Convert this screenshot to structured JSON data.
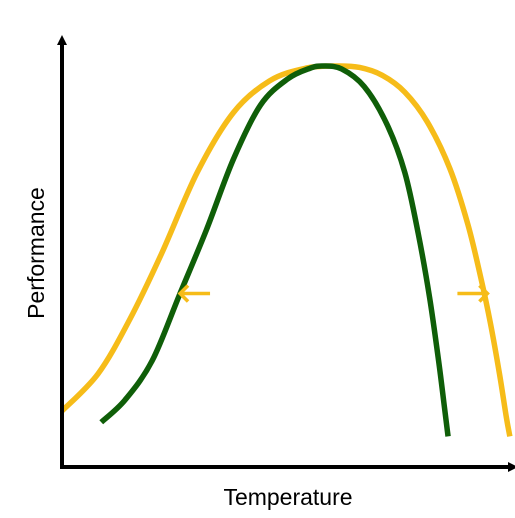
{
  "chart_data": {
    "type": "line",
    "xlabel": "Temperature",
    "ylabel": "Performance",
    "xlim": [
      0,
      100
    ],
    "ylim": [
      0,
      100
    ],
    "grid": false,
    "legend": "none",
    "axis_color": "#000000",
    "series": [
      {
        "color": "#F6BC19",
        "x": [
          0.0,
          8.0,
          15.0,
          22.0,
          30.0,
          38.0,
          46.0,
          54.0,
          61.0,
          66.0,
          71.0,
          76.0,
          81.0,
          86.0,
          90.0,
          93.0,
          95.0,
          97.0,
          98.5,
          99.3
        ],
        "y": [
          7.5,
          17.5,
          32.0,
          49.5,
          71.5,
          87.5,
          96.0,
          99.4,
          100.0,
          99.6,
          97.5,
          93.0,
          85.0,
          72.5,
          57.5,
          42.5,
          31.0,
          17.5,
          6.0,
          0.7
        ]
      },
      {
        "color": "#0F5E08",
        "x": [
          8.7,
          14.0,
          20.0,
          26.0,
          32.0,
          38.0,
          44.0,
          50.0,
          55.0,
          58.0,
          62.0,
          67.0,
          72.0,
          76.0,
          79.0,
          81.5,
          83.5,
          84.8,
          85.6
        ],
        "y": [
          4.5,
          10.5,
          21.0,
          38.5,
          56.0,
          75.0,
          89.5,
          96.5,
          99.4,
          100.0,
          99.2,
          94.5,
          84.5,
          71.5,
          55.0,
          38.0,
          21.0,
          8.5,
          0.7
        ]
      }
    ],
    "annotations": [
      {
        "type": "arrow",
        "direction": "left",
        "color": "#F6BC19",
        "x": 29.5,
        "y": 39.0
      },
      {
        "type": "arrow",
        "direction": "right",
        "color": "#F6BC19",
        "x": 91.0,
        "y": 39.0
      }
    ]
  }
}
